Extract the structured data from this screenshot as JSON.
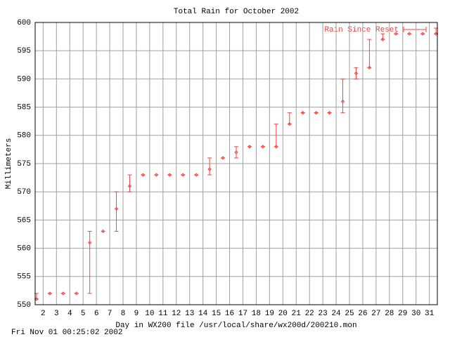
{
  "chart_data": {
    "type": "errorbar",
    "title": "Total Rain for October 2002",
    "xlabel": "Day in WX200 file /usr/local/share/wx200d/200210.mon",
    "ylabel": "Millimeters",
    "footer": "Fri Nov 01 00:25:02 2002",
    "xlim": [
      1.4,
      31.6
    ],
    "ylim": [
      550,
      600
    ],
    "xticks": [
      2,
      3,
      4,
      5,
      6,
      7,
      8,
      9,
      10,
      11,
      12,
      13,
      14,
      15,
      16,
      17,
      18,
      19,
      20,
      21,
      22,
      23,
      24,
      25,
      26,
      27,
      28,
      29,
      30,
      31
    ],
    "yticks": [
      550,
      555,
      560,
      565,
      570,
      575,
      580,
      585,
      590,
      595,
      600
    ],
    "grid": true,
    "series": [
      {
        "name": "Rain Since Reset",
        "color": "#ff4040",
        "x": [
          1.5,
          2.5,
          3.5,
          4.5,
          5.5,
          6.5,
          7.5,
          8.5,
          9.5,
          10.5,
          11.5,
          12.5,
          13.5,
          14.5,
          15.5,
          16.5,
          17.5,
          18.5,
          19.5,
          20.5,
          21.5,
          22.5,
          23.5,
          24.5,
          25.5,
          26.5,
          27.5,
          28.5,
          29.5,
          30.5,
          31.5
        ],
        "values": [
          551,
          552,
          552,
          552,
          561,
          563,
          567,
          571,
          573,
          573,
          573,
          573,
          573,
          574,
          576,
          577,
          578,
          578,
          578,
          582,
          584,
          584,
          584,
          586,
          591,
          592,
          597,
          598,
          598,
          598,
          598
        ],
        "ylow": [
          551,
          552,
          552,
          552,
          552,
          563,
          563,
          570,
          573,
          573,
          573,
          573,
          573,
          573,
          576,
          576,
          578,
          578,
          578,
          582,
          584,
          584,
          584,
          584,
          590,
          592,
          597,
          598,
          598,
          598,
          598
        ],
        "yhigh": [
          552,
          552,
          552,
          552,
          563,
          563,
          570,
          573,
          573,
          573,
          573,
          573,
          573,
          576,
          576,
          578,
          578,
          578,
          582,
          584,
          584,
          584,
          584,
          590,
          592,
          597,
          598,
          598,
          598,
          598,
          599
        ]
      }
    ]
  }
}
